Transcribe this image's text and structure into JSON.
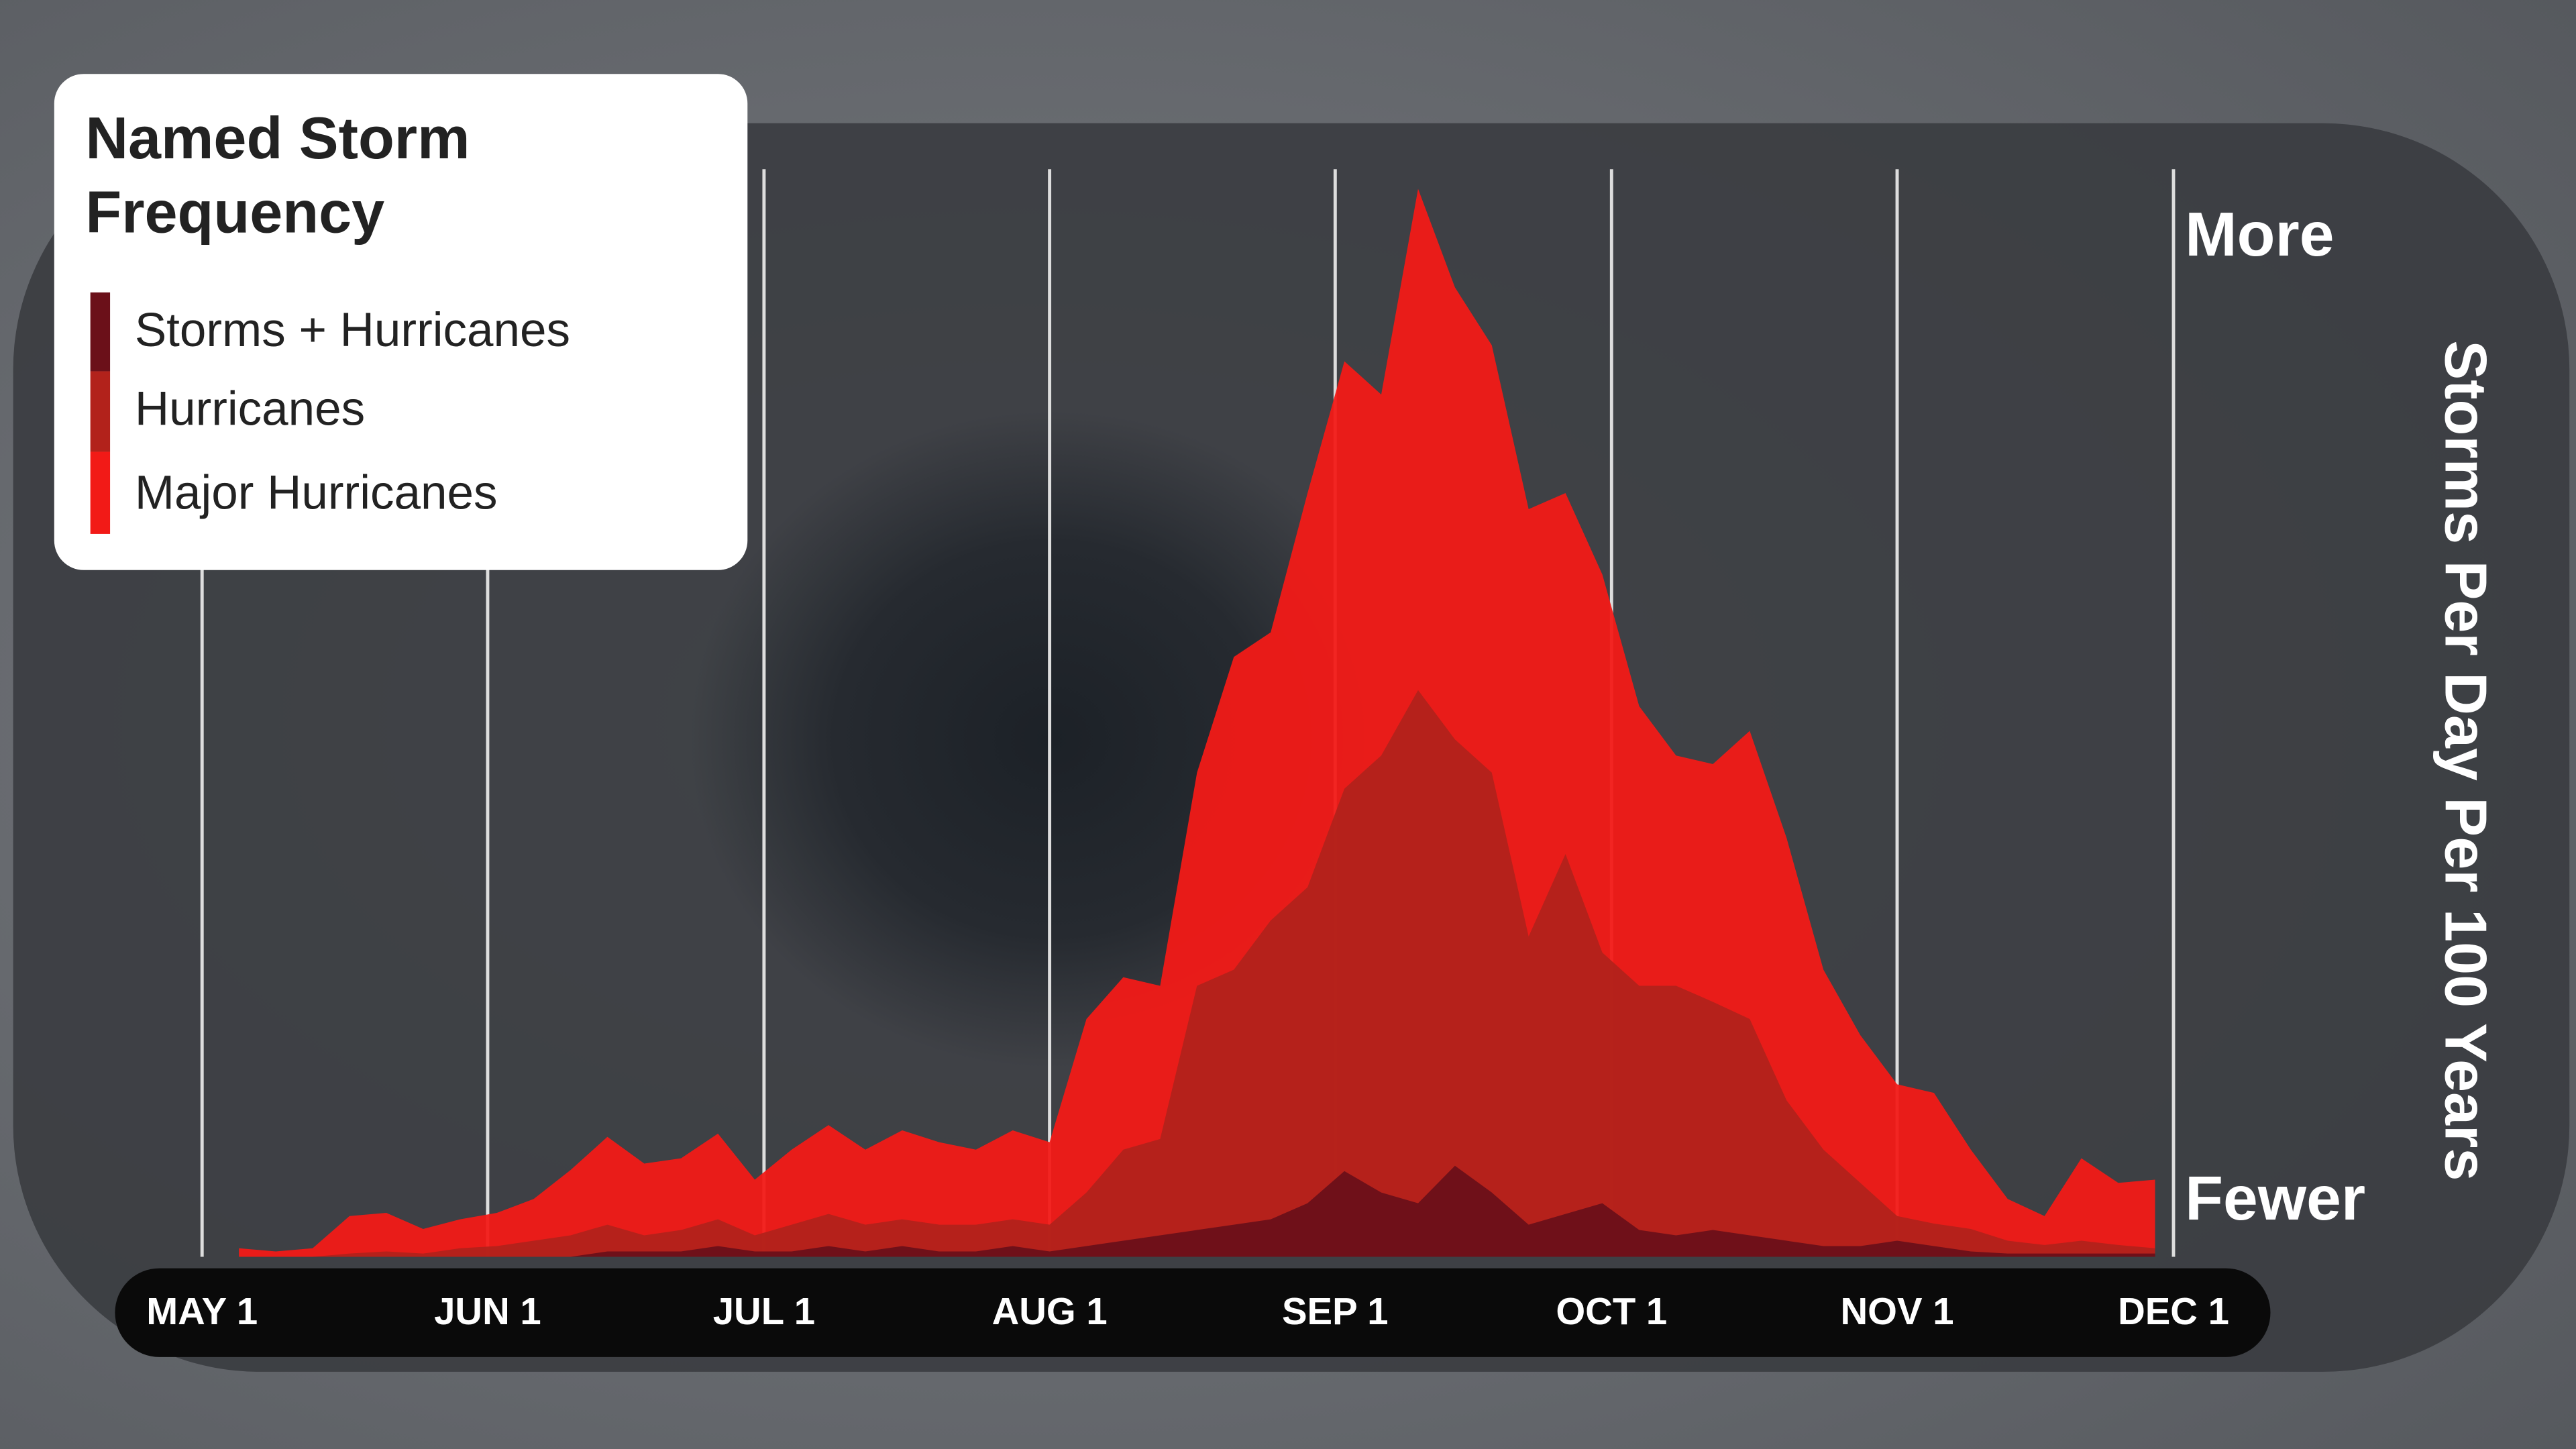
{
  "chart_data": {
    "type": "area",
    "title": "Named Storm Frequency",
    "y_label": "Storms Per Day Per 100 Years",
    "x": [
      4,
      8,
      12,
      16,
      20,
      24,
      28,
      32,
      36,
      40,
      44,
      48,
      52,
      56,
      60,
      64,
      68,
      72,
      76,
      80,
      84,
      88,
      92,
      96,
      100,
      104,
      108,
      112,
      116,
      120,
      124,
      128,
      132,
      136,
      140,
      144,
      148,
      152,
      156,
      160,
      164,
      168,
      172,
      176,
      180,
      184,
      188,
      192,
      196,
      200,
      204,
      208,
      212
    ],
    "xlim": [
      0,
      214
    ],
    "xticks": [
      {
        "value": 0,
        "label": "MAY 1"
      },
      {
        "value": 31,
        "label": "JUN 1"
      },
      {
        "value": 61,
        "label": "JUL 1"
      },
      {
        "value": 92,
        "label": "AUG 1"
      },
      {
        "value": 123,
        "label": "SEP 1"
      },
      {
        "value": 153,
        "label": "OCT 1"
      },
      {
        "value": 184,
        "label": "NOV 1"
      },
      {
        "value": 214,
        "label": "DEC 1"
      }
    ],
    "ylim": [
      0,
      100
    ],
    "yticks": [
      {
        "value": 5,
        "label": "Fewer"
      },
      {
        "value": 95,
        "label": "More"
      }
    ],
    "grid": true,
    "series": [
      {
        "name": "Storms + Hurricanes",
        "color": "#6b1019",
        "values": [
          0,
          0,
          0,
          0,
          0,
          0,
          0,
          0,
          0,
          0,
          0.5,
          0.5,
          0.5,
          1,
          0.5,
          0.5,
          1,
          0.5,
          1,
          0.5,
          0.5,
          1,
          0.5,
          1,
          1.5,
          2,
          2.5,
          3,
          3.5,
          5,
          8,
          6,
          5,
          8.5,
          6,
          3,
          4,
          5,
          2.5,
          2,
          2.5,
          2,
          1.5,
          1,
          1,
          1.5,
          1,
          0.5,
          0.3,
          0.3,
          0.3,
          0.3,
          0.3
        ]
      },
      {
        "name": "Hurricanes",
        "color": "#b2221b",
        "values": [
          0,
          0,
          0,
          0.3,
          0.5,
          0.3,
          0.8,
          1,
          1.5,
          2,
          3,
          2,
          2.5,
          3.5,
          2,
          3,
          4,
          3,
          3.5,
          3,
          3,
          3.5,
          3,
          6,
          10,
          11,
          25.3,
          26.8,
          31.4,
          34.5,
          43.7,
          46.8,
          52.9,
          48.3,
          45.2,
          29.9,
          37.6,
          28.4,
          25.3,
          25.3,
          23.8,
          22.2,
          14.6,
          10,
          6.9,
          3.8,
          3.1,
          2.6,
          1.5,
          1.1,
          1.5,
          1.1,
          0.8
        ]
      },
      {
        "name": "Major Hurricanes",
        "color": "#f21a17",
        "values": [
          0.8,
          0.5,
          0.8,
          3.8,
          4.1,
          2.6,
          3.5,
          4.1,
          5.4,
          8.1,
          11.2,
          8.7,
          9.2,
          11.5,
          7.2,
          10,
          12.3,
          10,
          11.8,
          10.7,
          10,
          11.8,
          10.7,
          22.2,
          26.1,
          25.3,
          45.2,
          56,
          58.3,
          71.3,
          83.6,
          80.5,
          99.7,
          90.5,
          85.1,
          69.8,
          71.3,
          63.7,
          51.4,
          46.8,
          46,
          49.1,
          39.1,
          26.8,
          20.7,
          16.1,
          15.3,
          10,
          5.4,
          3.8,
          9.2,
          6.9,
          7.2
        ]
      }
    ]
  }
}
